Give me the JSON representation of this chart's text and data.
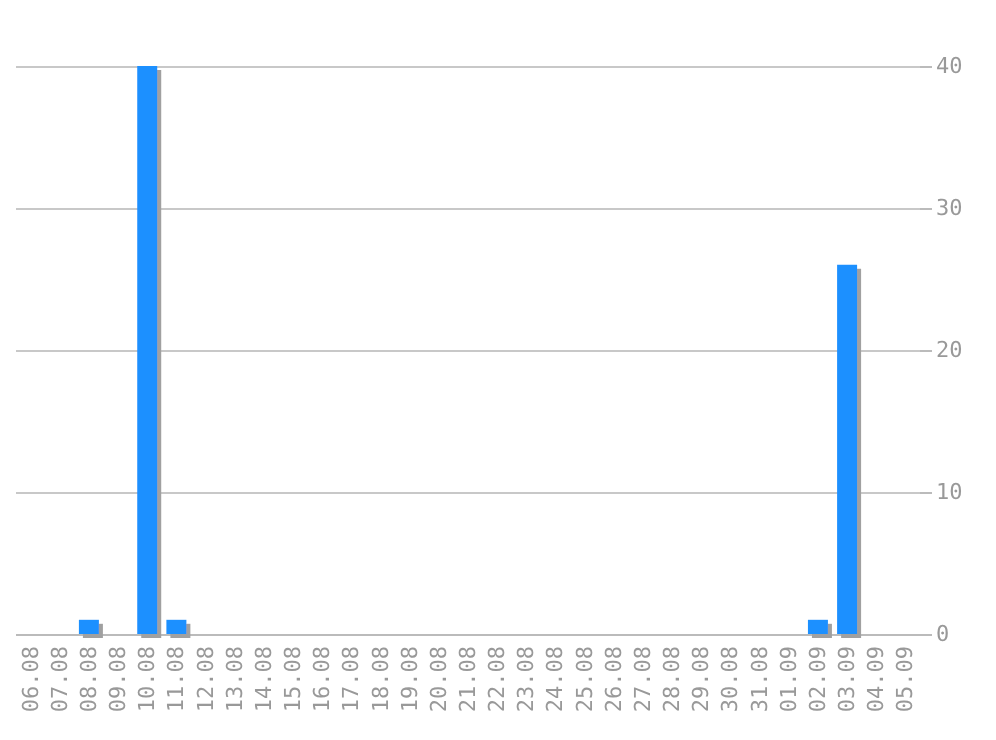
{
  "chart_data": {
    "type": "bar",
    "categories": [
      "06.08",
      "07.08",
      "08.08",
      "09.08",
      "10.08",
      "11.08",
      "12.08",
      "13.08",
      "14.08",
      "15.08",
      "16.08",
      "17.08",
      "18.08",
      "19.08",
      "20.08",
      "21.08",
      "22.08",
      "23.08",
      "24.08",
      "25.08",
      "26.08",
      "27.08",
      "28.08",
      "29.08",
      "30.08",
      "31.08",
      "01.09",
      "02.09",
      "03.09",
      "04.09",
      "05.09"
    ],
    "values": [
      0,
      0,
      1,
      0,
      40,
      1,
      0,
      0,
      0,
      0,
      0,
      0,
      0,
      0,
      0,
      0,
      0,
      0,
      0,
      0,
      0,
      0,
      0,
      0,
      0,
      0,
      0,
      1,
      26,
      0,
      0
    ],
    "color": "#1e90ff",
    "ylim": [
      0,
      40
    ],
    "yticks": [
      0,
      10,
      20,
      30,
      40
    ],
    "grid": "y"
  }
}
